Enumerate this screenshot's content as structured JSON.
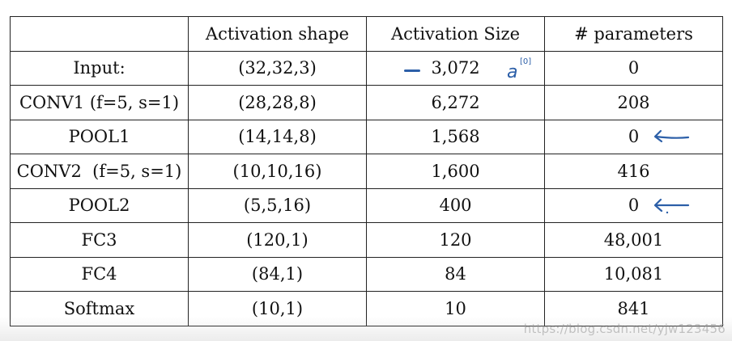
{
  "table": {
    "headers": [
      "",
      "Activation shape",
      "Activation Size",
      "# parameters"
    ],
    "rows": [
      {
        "layer": "Input:",
        "shape": "(32,32,3)",
        "size": "3,072",
        "params": "0"
      },
      {
        "layer": "CONV1 (f=5, s=1)",
        "shape": "(28,28,8)",
        "size": "6,272",
        "params": "208"
      },
      {
        "layer": "POOL1",
        "shape": "(14,14,8)",
        "size": "1,568",
        "params": "0"
      },
      {
        "layer": "CONV2  (f=5, s=1)",
        "shape": "(10,10,16)",
        "size": "1,600",
        "params": "416"
      },
      {
        "layer": "POOL2",
        "shape": "(5,5,16)",
        "size": "400",
        "params": "0"
      },
      {
        "layer": "FC3",
        "shape": "(120,1)",
        "size": "120",
        "params": "48,001"
      },
      {
        "layer": "FC4",
        "shape": "(84,1)",
        "size": "84",
        "params": "10,081"
      },
      {
        "layer": "Softmax",
        "shape": "(10,1)",
        "size": "10",
        "params": "841"
      }
    ]
  },
  "annotations": {
    "input_size_note": "a",
    "input_size_superscript": "[0]",
    "ink_color": "#2c5fa8",
    "arrow_rows": [
      "POOL1",
      "POOL2"
    ]
  },
  "watermark": "https://blog.csdn.net/yjw123456"
}
